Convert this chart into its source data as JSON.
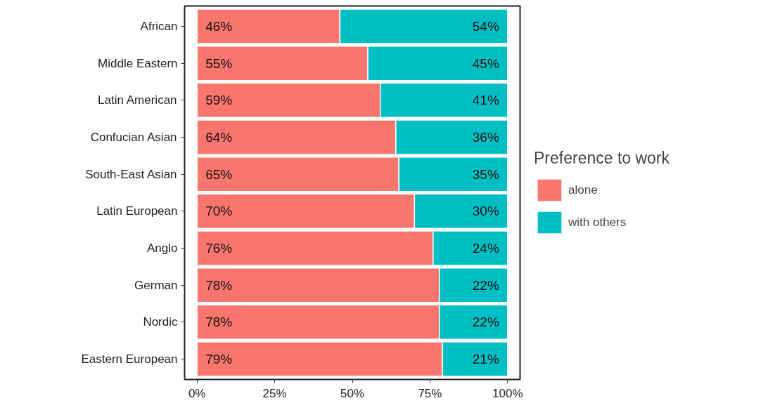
{
  "chart_data": {
    "type": "bar",
    "orientation": "horizontal",
    "stacked": true,
    "categories": [
      "African",
      "Middle Eastern",
      "Latin American",
      "Confucian Asian",
      "South-East Asian",
      "Latin European",
      "Anglo",
      "German",
      "Nordic",
      "Eastern European"
    ],
    "series": [
      {
        "name": "alone",
        "color": "#f8766d",
        "values": [
          46,
          55,
          59,
          64,
          65,
          70,
          76,
          78,
          78,
          79
        ],
        "value_labels": [
          "46%",
          "55%",
          "59%",
          "64%",
          "65%",
          "70%",
          "76%",
          "78%",
          "78%",
          "79%"
        ]
      },
      {
        "name": "with others",
        "color": "#00bfc4",
        "values": [
          54,
          45,
          41,
          36,
          35,
          30,
          24,
          22,
          22,
          21
        ],
        "value_labels": [
          "54%",
          "45%",
          "41%",
          "36%",
          "35%",
          "30%",
          "24%",
          "22%",
          "22%",
          "21%"
        ]
      }
    ],
    "legend_title": "Preference to work",
    "legend": "right",
    "grid": false,
    "xlim": [
      -4,
      104
    ],
    "xticks": [
      {
        "value": 0,
        "label": "0%"
      },
      {
        "value": 25,
        "label": "25%"
      },
      {
        "value": 50,
        "label": "50%"
      },
      {
        "value": 75,
        "label": "75%"
      },
      {
        "value": 100,
        "label": "100%"
      }
    ]
  }
}
